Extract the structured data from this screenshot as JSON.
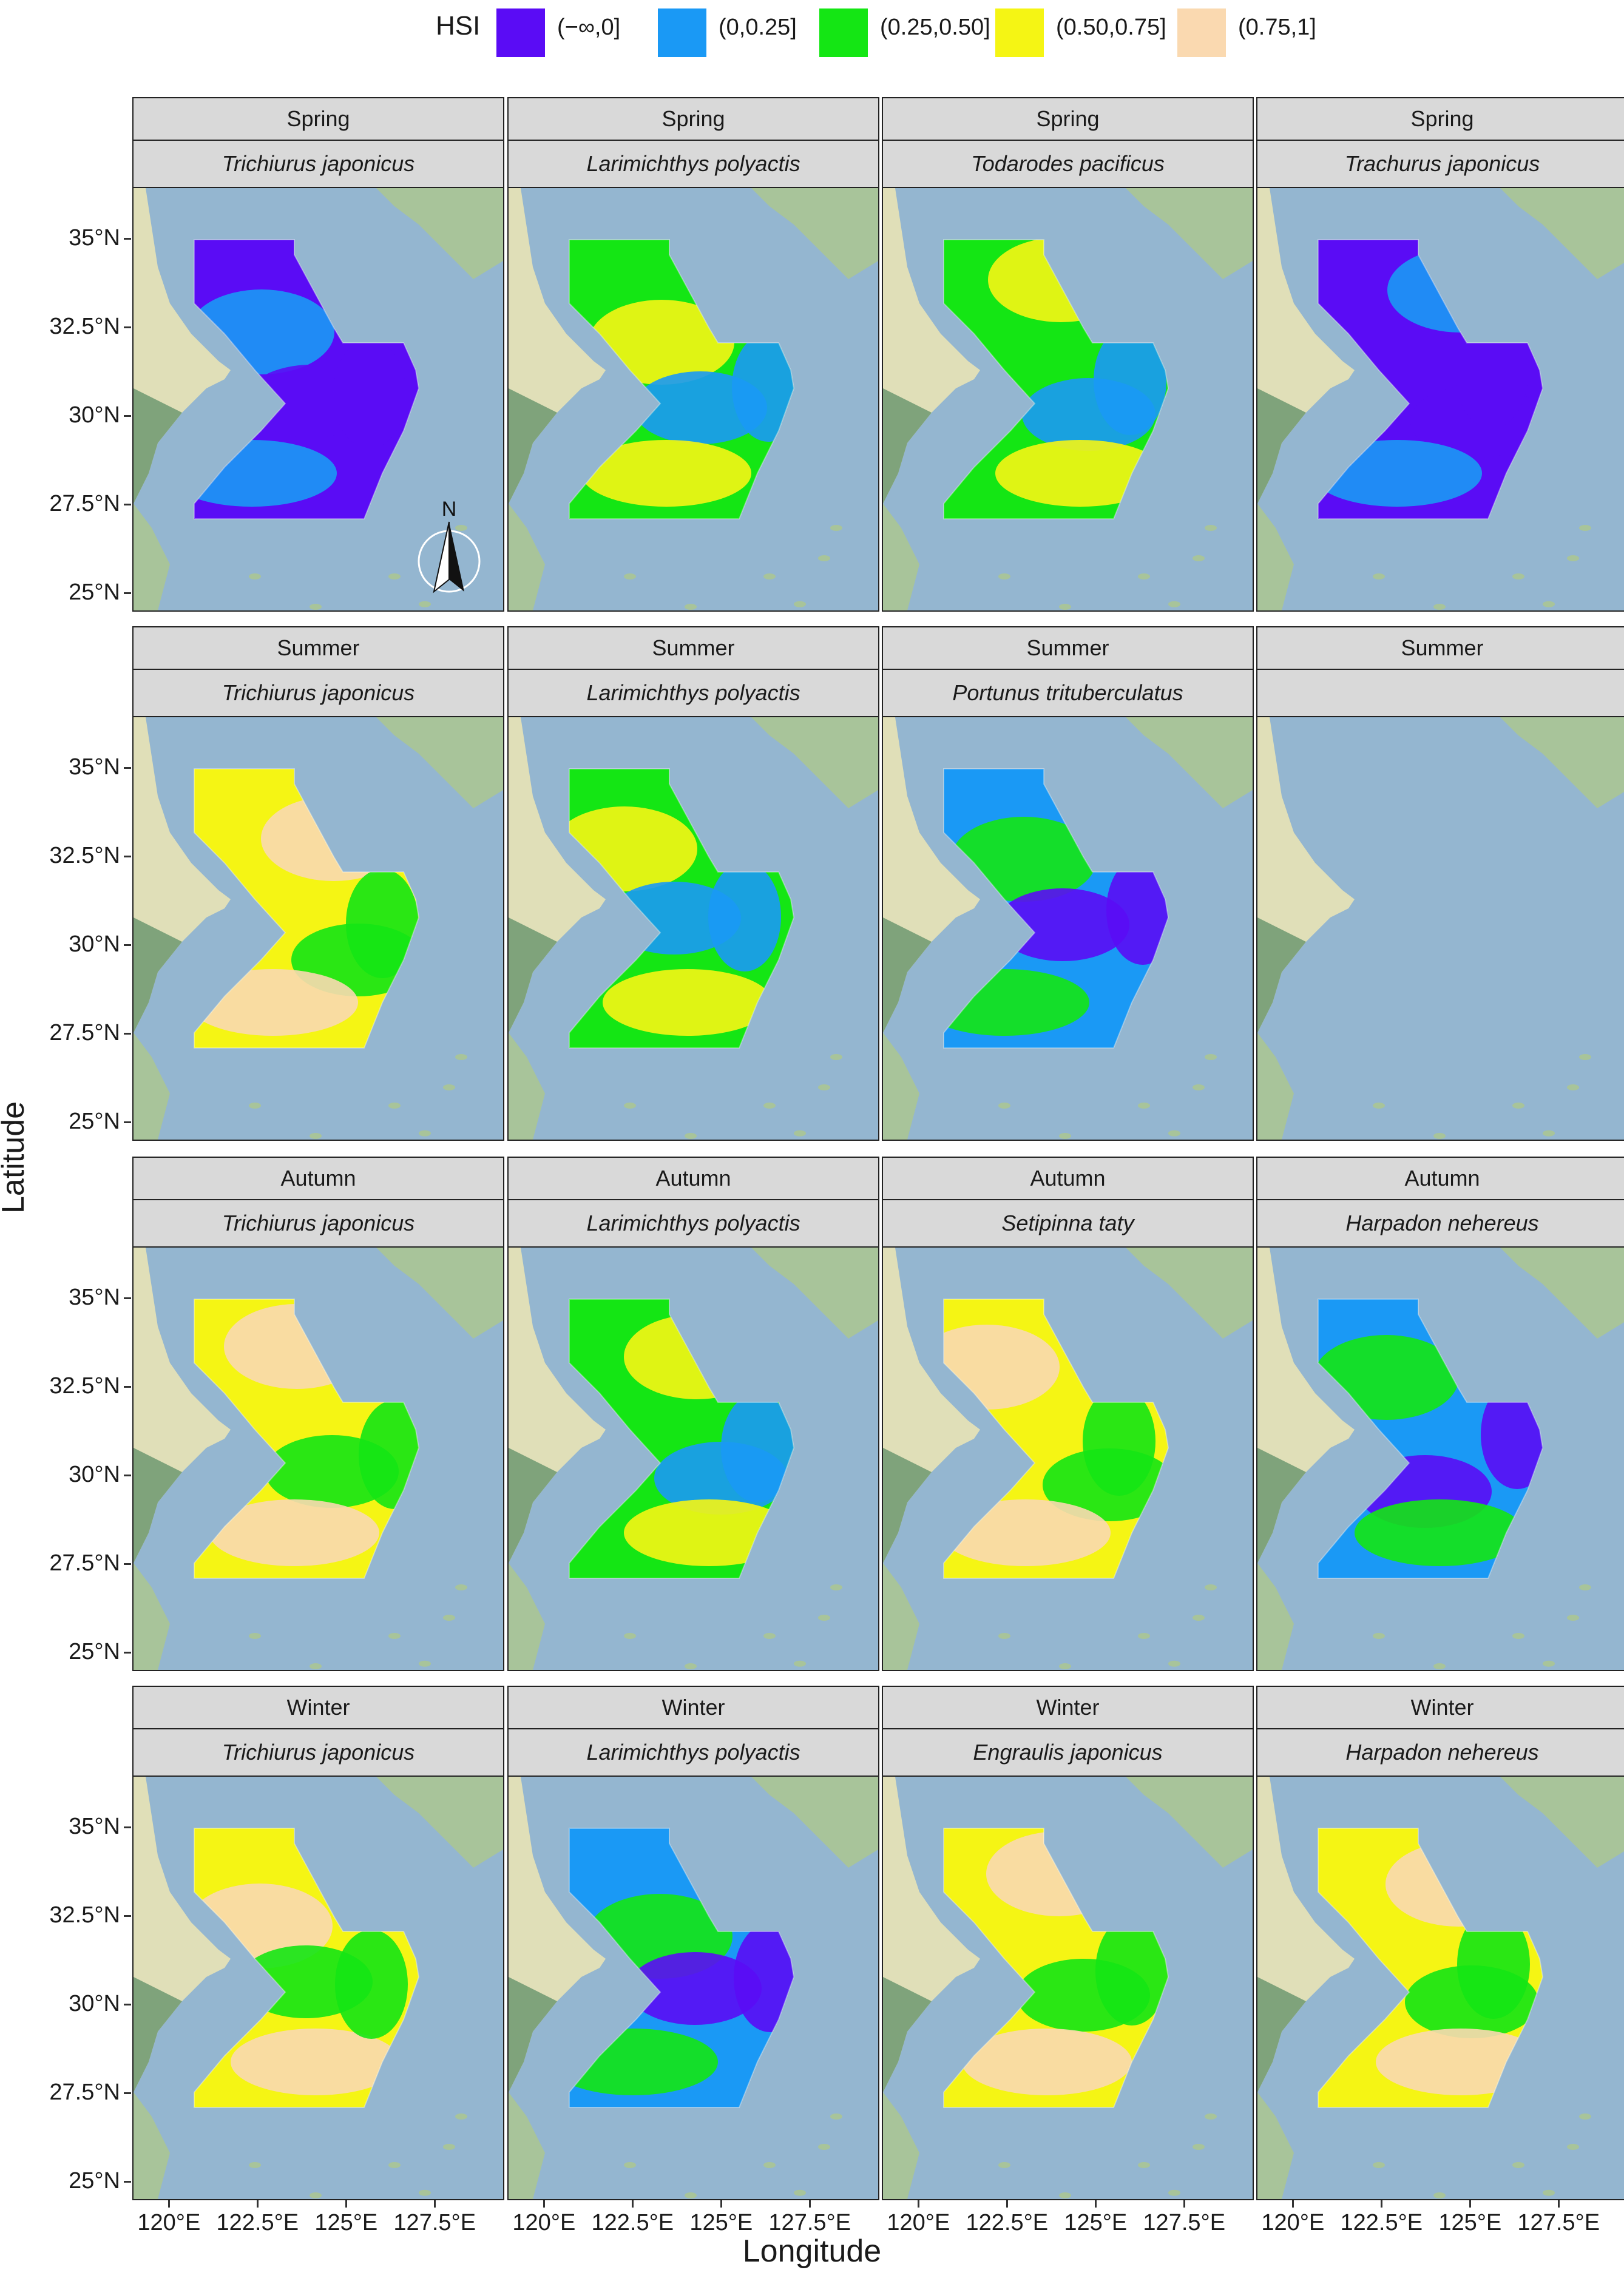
{
  "legend": {
    "title": "HSI",
    "items": [
      {
        "label": "(−∞,0]",
        "color": "#5a0cf5"
      },
      {
        "label": "(0,0.25]",
        "color": "#1a99f5"
      },
      {
        "label": "(0.25,0.50]",
        "color": "#14e614"
      },
      {
        "label": "(0.50,0.75]",
        "color": "#f5f514"
      },
      {
        "label": "(0.75,1]",
        "color": "#fad9b0"
      }
    ]
  },
  "axes": {
    "ylabel": "Latitude",
    "xlabel": "Longitude",
    "y_ticks": [
      "35°N",
      "32.5°N",
      "30°N",
      "27.5°N",
      "25°N"
    ],
    "x_ticks": [
      "120°E",
      "122.5°E",
      "125°E",
      "127.5°E"
    ]
  },
  "map_colors": {
    "sea": "#94b6d0",
    "land": "#a8c49a",
    "land_dark": "#7fa37b",
    "coast_plain": "#e0dfb8"
  },
  "compass_label": "N",
  "rows": [
    {
      "season": "Spring",
      "panels": [
        {
          "species": "Trichiurus japonicus",
          "dominant": "(−∞,0]"
        },
        {
          "species": "Larimichthys polyactis",
          "dominant": "(0.25,0.50]"
        },
        {
          "species": "Todarodes pacificus",
          "dominant": "(0.25,0.50]"
        },
        {
          "species": "Trachurus japonicus",
          "dominant": "(−∞,0]"
        }
      ]
    },
    {
      "season": "Summer",
      "panels": [
        {
          "species": "Trichiurus japonicus",
          "dominant": "(0.50,0.75]"
        },
        {
          "species": "Larimichthys polyactis",
          "dominant": "(0.25,0.50]"
        },
        {
          "species": "Portunus trituberculatus",
          "dominant": "(0,0.25]"
        },
        {
          "species": "",
          "dominant": ""
        }
      ]
    },
    {
      "season": "Autumn",
      "panels": [
        {
          "species": "Trichiurus japonicus",
          "dominant": "(0.50,0.75]"
        },
        {
          "species": "Larimichthys polyactis",
          "dominant": "(0.25,0.50]"
        },
        {
          "species": "Setipinna taty",
          "dominant": "(0.50,0.75]"
        },
        {
          "species": "Harpadon nehereus",
          "dominant": "(0,0.25]"
        }
      ]
    },
    {
      "season": "Winter",
      "panels": [
        {
          "species": "Trichiurus japonicus",
          "dominant": "(0.50,0.75]"
        },
        {
          "species": "Larimichthys polyactis",
          "dominant": "(0,0.25]"
        },
        {
          "species": "Engraulis japonicus",
          "dominant": "(0.50,0.75]"
        },
        {
          "species": "Harpadon nehereus",
          "dominant": "(0.50,0.75]"
        }
      ]
    }
  ]
}
